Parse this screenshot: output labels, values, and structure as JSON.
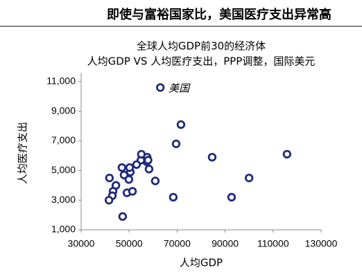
{
  "header": {
    "title": "即使与富裕国家比，美国医疗支出异常高"
  },
  "chart_data": {
    "type": "scatter",
    "title": "全球人均GDP前30的经济体",
    "subtitle": "人均GDP VS 人均医疗支出，PPP调整，国际美元",
    "x_label": "人均GDP",
    "y_label": "人均医疗支出",
    "annotation": "美国",
    "color": "#1f2a7a",
    "x": [
      63000,
      71600,
      69600,
      84600,
      115800,
      100000,
      92700,
      68400,
      60900,
      58300,
      57500,
      57300,
      57900,
      54900,
      53100,
      55100,
      50500,
      50200,
      47000,
      47900,
      49900,
      41800,
      44500,
      43300,
      43000,
      41600,
      49100,
      51400,
      47300
    ],
    "y": [
      10600,
      8100,
      6800,
      5900,
      6100,
      4500,
      3200,
      3200,
      4300,
      5100,
      5900,
      5600,
      5700,
      5700,
      5400,
      6100,
      4900,
      5200,
      5200,
      4700,
      4400,
      4500,
      4000,
      3600,
      3300,
      3000,
      3500,
      3600,
      1900
    ],
    "xlim": [
      30000,
      130000
    ],
    "ylim": [
      1000,
      11600
    ],
    "xticks": [
      30000,
      50000,
      70000,
      90000,
      110000,
      130000
    ],
    "yticks": [
      {
        "value": 1000,
        "label": "1,000"
      },
      {
        "value": 3000,
        "label": "3,000"
      },
      {
        "value": 5000,
        "label": "5,000"
      },
      {
        "value": 7000,
        "label": "7,000"
      },
      {
        "value": 9000,
        "label": "9,000"
      },
      {
        "value": 11000,
        "label": "11,000"
      }
    ]
  }
}
